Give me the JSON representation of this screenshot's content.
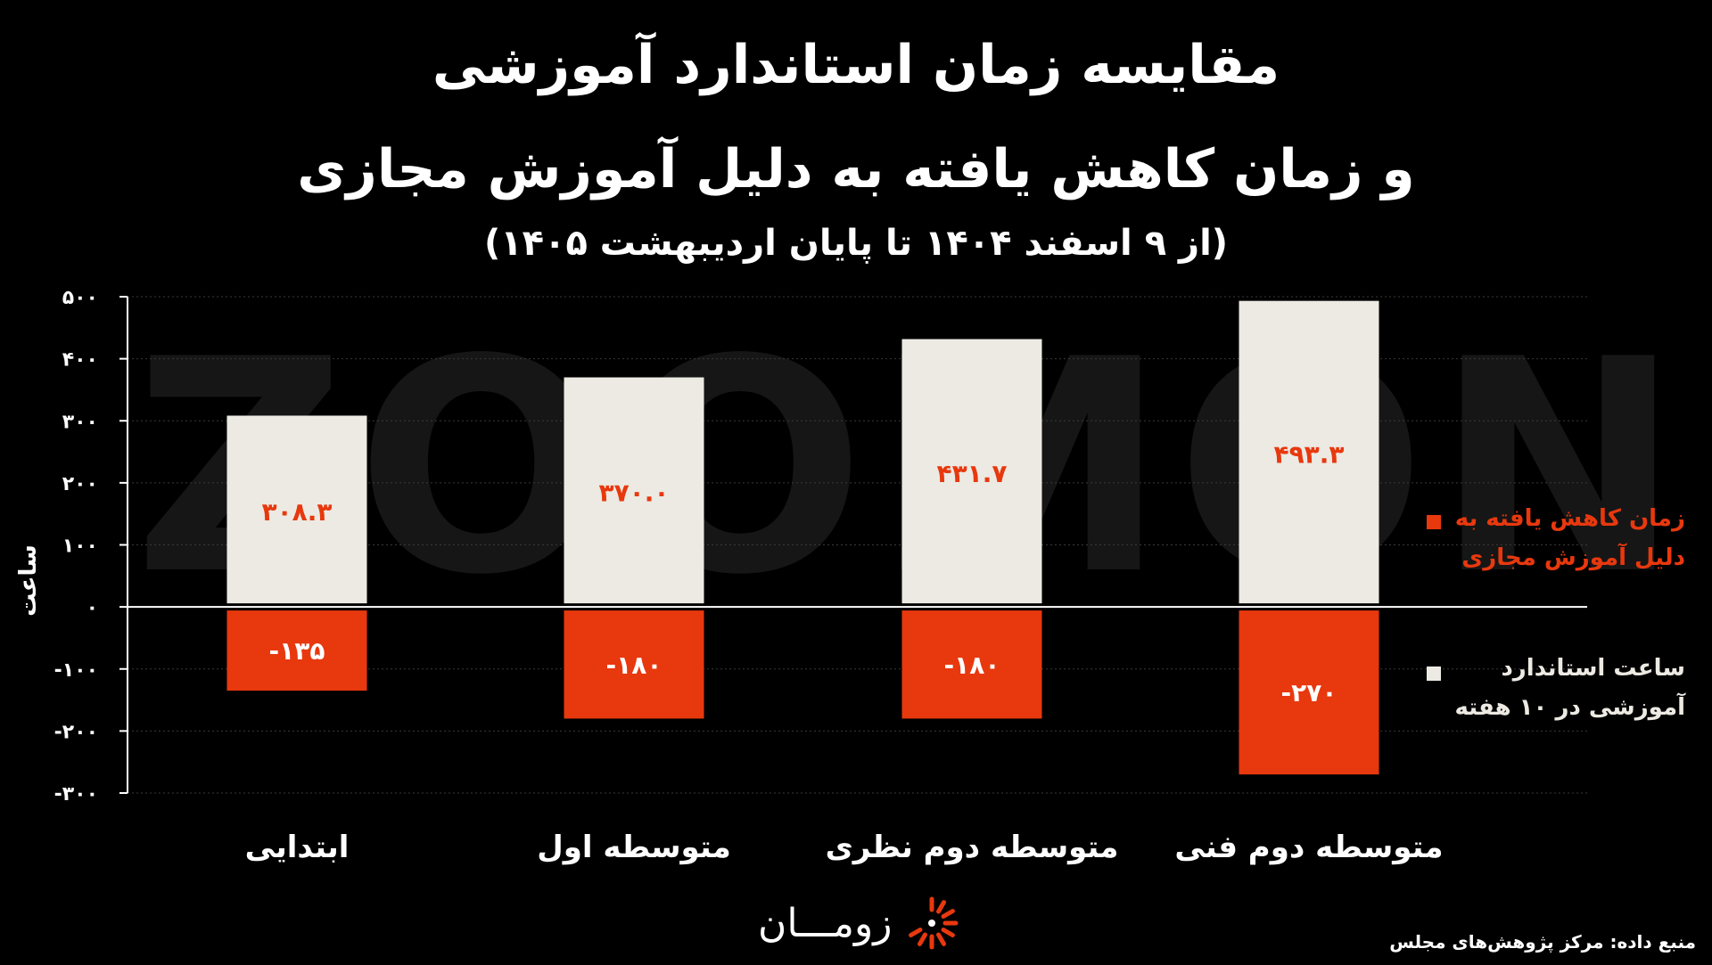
{
  "header": {
    "title_line1": "مقایسه زمان استاندارد آموزشی",
    "title_line2": "و زمان کاهش یافته به دلیل آموزش مجازی",
    "subtitle": "(از ۹ اسفند ۱۴۰۴ تا پایان اردیبهشت ۱۴۰۵)"
  },
  "watermark": "ZOOMON",
  "chart_data": {
    "type": "bar",
    "categories": [
      "ابتدایی",
      "متوسطه اول",
      "متوسطه دوم نظری",
      "متوسطه دوم فنی"
    ],
    "series": [
      {
        "name": "ساعت استاندارد آموزشی در ۱۰ هفته",
        "values": [
          308.3,
          370.0,
          431.7,
          493.3
        ],
        "labels": [
          "۳۰۸.۳",
          "۳۷۰.۰",
          "۴۳۱.۷",
          "۴۹۳.۳"
        ],
        "color": "#eceae3"
      },
      {
        "name": "زمان کاهش یافته به دلیل آموزش مجازی",
        "values": [
          -135,
          -180,
          -180,
          -270
        ],
        "labels": [
          "-۱۳۵",
          "-۱۸۰",
          "-۱۸۰",
          "-۲۷۰"
        ],
        "color": "#e8380e"
      }
    ],
    "ylabel": "ساعت",
    "ylim": [
      -300,
      500
    ],
    "yticks": [
      500,
      400,
      300,
      200,
      100,
      0,
      -100,
      -200,
      -300
    ],
    "ytick_labels": [
      "۵۰۰",
      "۴۰۰",
      "۳۰۰",
      "۲۰۰",
      "۱۰۰",
      "۰",
      "-۱۰۰",
      "-۲۰۰",
      "-۳۰۰"
    ],
    "grid": true,
    "legend_position": "right"
  },
  "legend": {
    "red_label": "زمان کاهش یافته به دلیل آموزش مجازی",
    "white_label": "ساعت استاندارد آموزشی در ۱۰ هفته"
  },
  "footer": {
    "logo_text": "زومـــان",
    "source": "منبع داده: مرکز پژوهش‌های مجلس"
  },
  "colors": {
    "background": "#000000",
    "accent": "#e8380e",
    "bar_light": "#eceae3"
  }
}
